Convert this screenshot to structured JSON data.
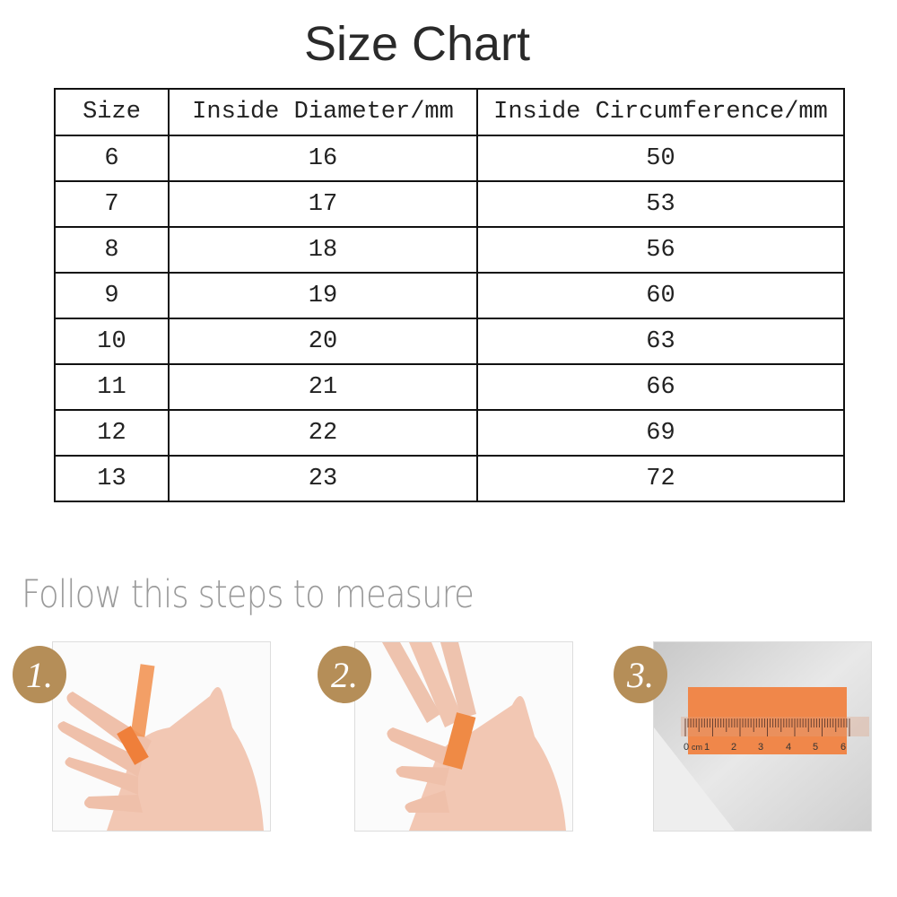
{
  "title": "Size Chart",
  "table": {
    "headers": [
      "Size",
      "Inside Diameter/mm",
      "Inside Circumference/mm"
    ],
    "rows": [
      [
        "6",
        "16",
        "50"
      ],
      [
        "7",
        "17",
        "53"
      ],
      [
        "8",
        "18",
        "56"
      ],
      [
        "9",
        "19",
        "60"
      ],
      [
        "10",
        "20",
        "63"
      ],
      [
        "11",
        "21",
        "66"
      ],
      [
        "12",
        "22",
        "69"
      ],
      [
        "13",
        "23",
        "72"
      ]
    ]
  },
  "steps_heading": "Follow this steps to measure",
  "steps": [
    {
      "number": "1."
    },
    {
      "number": "2."
    },
    {
      "number": "3.",
      "ruler_labels": [
        "0",
        "cm",
        "1",
        "2",
        "3",
        "4",
        "5",
        "6"
      ]
    }
  ],
  "colors": {
    "badge": "#b58e58",
    "paper_strip": "#f0874a",
    "skin": "#f2c7b3"
  }
}
